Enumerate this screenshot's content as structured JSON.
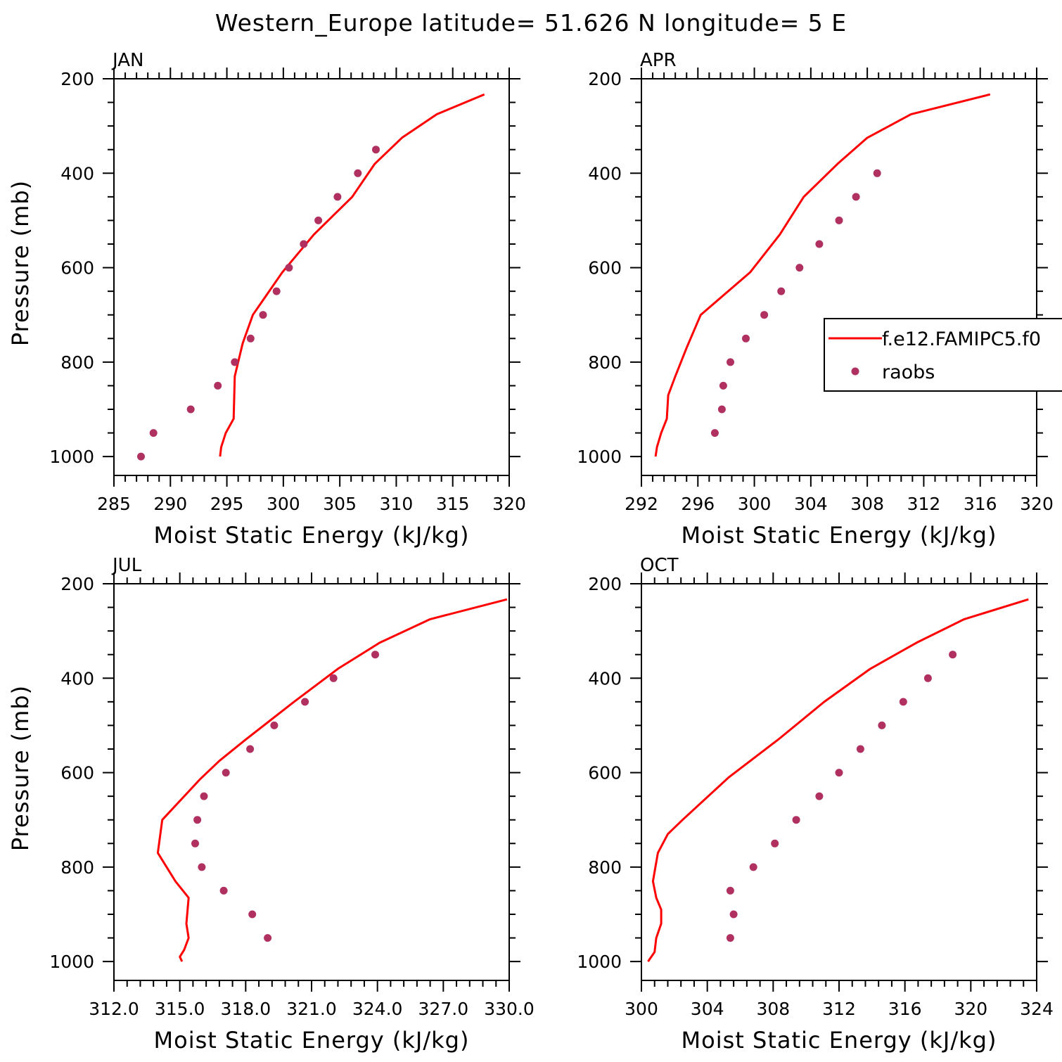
{
  "title": "Western_Europe  latitude= 51.626 N longitude= 5 E",
  "legend": {
    "model_label": "f.e12.FAMIPC5.f0",
    "obs_label": "raobs"
  },
  "colors": {
    "model": "#ff0000",
    "obs": "#b03060",
    "axes": "#000000"
  },
  "chart_data": [
    {
      "type": "line",
      "panel_label": "JAN",
      "xlabel": "Moist Static Energy (kJ/kg)",
      "ylabel": "Pressure (mb)",
      "xlim": [
        285,
        320
      ],
      "ylim": [
        1040,
        200
      ],
      "x_ticks": [
        "285",
        "290",
        "295",
        "300",
        "305",
        "310",
        "315",
        "320"
      ],
      "y_ticks": [
        "200",
        "400",
        "600",
        "800",
        "1000"
      ],
      "series": [
        {
          "name": "f.e12.FAMIPC5.f0",
          "style": "line",
          "points": [
            [
              317.8,
              233
            ],
            [
              313.6,
              275
            ],
            [
              310.5,
              325
            ],
            [
              308.1,
              380
            ],
            [
              306.1,
              450
            ],
            [
              302.7,
              530
            ],
            [
              299.9,
              610
            ],
            [
              297.3,
              700
            ],
            [
              296.4,
              760
            ],
            [
              295.7,
              830
            ],
            [
              295.6,
              920
            ],
            [
              294.9,
              950
            ],
            [
              294.5,
              980
            ],
            [
              294.4,
              1000
            ]
          ]
        },
        {
          "name": "raobs",
          "style": "scatter",
          "points": [
            [
              308.2,
              350
            ],
            [
              306.6,
              400
            ],
            [
              304.8,
              450
            ],
            [
              303.1,
              500
            ],
            [
              301.8,
              550
            ],
            [
              300.5,
              600
            ],
            [
              299.4,
              650
            ],
            [
              298.2,
              700
            ],
            [
              297.1,
              750
            ],
            [
              295.7,
              800
            ],
            [
              294.2,
              850
            ],
            [
              291.8,
              900
            ],
            [
              288.5,
              950
            ],
            [
              287.4,
              1000
            ]
          ]
        }
      ]
    },
    {
      "type": "line",
      "panel_label": "APR",
      "xlabel": "Moist Static Energy (kJ/kg)",
      "ylabel": "",
      "xlim": [
        292,
        320
      ],
      "ylim": [
        1040,
        200
      ],
      "x_ticks": [
        "292",
        "296",
        "300",
        "304",
        "308",
        "312",
        "316",
        "320"
      ],
      "y_ticks": [
        "200",
        "400",
        "600",
        "800",
        "1000"
      ],
      "series": [
        {
          "name": "f.e12.FAMIPC5.f0",
          "style": "line",
          "points": [
            [
              316.7,
              233
            ],
            [
              311.1,
              275
            ],
            [
              308.0,
              325
            ],
            [
              305.9,
              380
            ],
            [
              303.5,
              450
            ],
            [
              301.8,
              530
            ],
            [
              299.7,
              610
            ],
            [
              296.2,
              700
            ],
            [
              295.2,
              770
            ],
            [
              294.4,
              830
            ],
            [
              293.9,
              870
            ],
            [
              293.8,
              920
            ],
            [
              293.4,
              950
            ],
            [
              293.1,
              980
            ],
            [
              293.0,
              1000
            ]
          ]
        },
        {
          "name": "raobs",
          "style": "scatter",
          "points": [
            [
              308.7,
              400
            ],
            [
              307.2,
              450
            ],
            [
              306.0,
              500
            ],
            [
              304.6,
              550
            ],
            [
              303.2,
              600
            ],
            [
              301.9,
              650
            ],
            [
              300.7,
              700
            ],
            [
              299.4,
              750
            ],
            [
              298.3,
              800
            ],
            [
              297.8,
              850
            ],
            [
              297.7,
              900
            ],
            [
              297.2,
              950
            ]
          ]
        }
      ]
    },
    {
      "type": "line",
      "panel_label": "JUL",
      "xlabel": "Moist Static Energy (kJ/kg)",
      "ylabel": "Pressure (mb)",
      "xlim": [
        312,
        330
      ],
      "ylim": [
        1040,
        200
      ],
      "x_ticks": [
        "312.0",
        "315.0",
        "318.0",
        "321.0",
        "324.0",
        "327.0",
        "330.0"
      ],
      "y_ticks": [
        "200",
        "400",
        "600",
        "800",
        "1000"
      ],
      "series": [
        {
          "name": "f.e12.FAMIPC5.f0",
          "style": "line",
          "points": [
            [
              329.9,
              233
            ],
            [
              326.4,
              275
            ],
            [
              324.1,
              325
            ],
            [
              322.2,
              380
            ],
            [
              320.2,
              450
            ],
            [
              318.0,
              530
            ],
            [
              316.8,
              575
            ],
            [
              315.9,
              615
            ],
            [
              314.2,
              700
            ],
            [
              314.0,
              770
            ],
            [
              314.8,
              830
            ],
            [
              315.4,
              865
            ],
            [
              315.3,
              920
            ],
            [
              315.4,
              950
            ],
            [
              315.2,
              975
            ],
            [
              315.0,
              990
            ],
            [
              315.1,
              1000
            ]
          ]
        },
        {
          "name": "raobs",
          "style": "scatter",
          "points": [
            [
              323.9,
              350
            ],
            [
              322.0,
              400
            ],
            [
              320.7,
              450
            ],
            [
              319.3,
              500
            ],
            [
              318.2,
              550
            ],
            [
              317.1,
              600
            ],
            [
              316.1,
              650
            ],
            [
              315.8,
              700
            ],
            [
              315.7,
              750
            ],
            [
              316.0,
              800
            ],
            [
              317.0,
              850
            ],
            [
              318.3,
              900
            ],
            [
              319.0,
              950
            ]
          ]
        }
      ]
    },
    {
      "type": "line",
      "panel_label": "OCT",
      "xlabel": "Moist Static Energy (kJ/kg)",
      "ylabel": "",
      "xlim": [
        300,
        324
      ],
      "ylim": [
        1040,
        200
      ],
      "x_ticks": [
        "300",
        "304",
        "308",
        "312",
        "316",
        "320",
        "324"
      ],
      "y_ticks": [
        "200",
        "400",
        "600",
        "800",
        "1000"
      ],
      "series": [
        {
          "name": "f.e12.FAMIPC5.f0",
          "style": "line",
          "points": [
            [
              323.5,
              233
            ],
            [
              319.6,
              275
            ],
            [
              316.7,
              325
            ],
            [
              313.9,
              380
            ],
            [
              311.1,
              450
            ],
            [
              308.3,
              530
            ],
            [
              305.3,
              610
            ],
            [
              302.5,
              700
            ],
            [
              301.6,
              730
            ],
            [
              301.0,
              770
            ],
            [
              300.7,
              830
            ],
            [
              300.9,
              865
            ],
            [
              301.2,
              890
            ],
            [
              301.2,
              920
            ],
            [
              300.9,
              950
            ],
            [
              300.8,
              980
            ],
            [
              300.4,
              1000
            ]
          ]
        },
        {
          "name": "raobs",
          "style": "scatter",
          "points": [
            [
              318.9,
              350
            ],
            [
              317.4,
              400
            ],
            [
              315.9,
              450
            ],
            [
              314.6,
              500
            ],
            [
              313.3,
              550
            ],
            [
              312.0,
              600
            ],
            [
              310.8,
              650
            ],
            [
              309.4,
              700
            ],
            [
              308.1,
              750
            ],
            [
              306.8,
              800
            ],
            [
              305.4,
              850
            ],
            [
              305.6,
              900
            ],
            [
              305.4,
              950
            ]
          ]
        }
      ]
    }
  ]
}
